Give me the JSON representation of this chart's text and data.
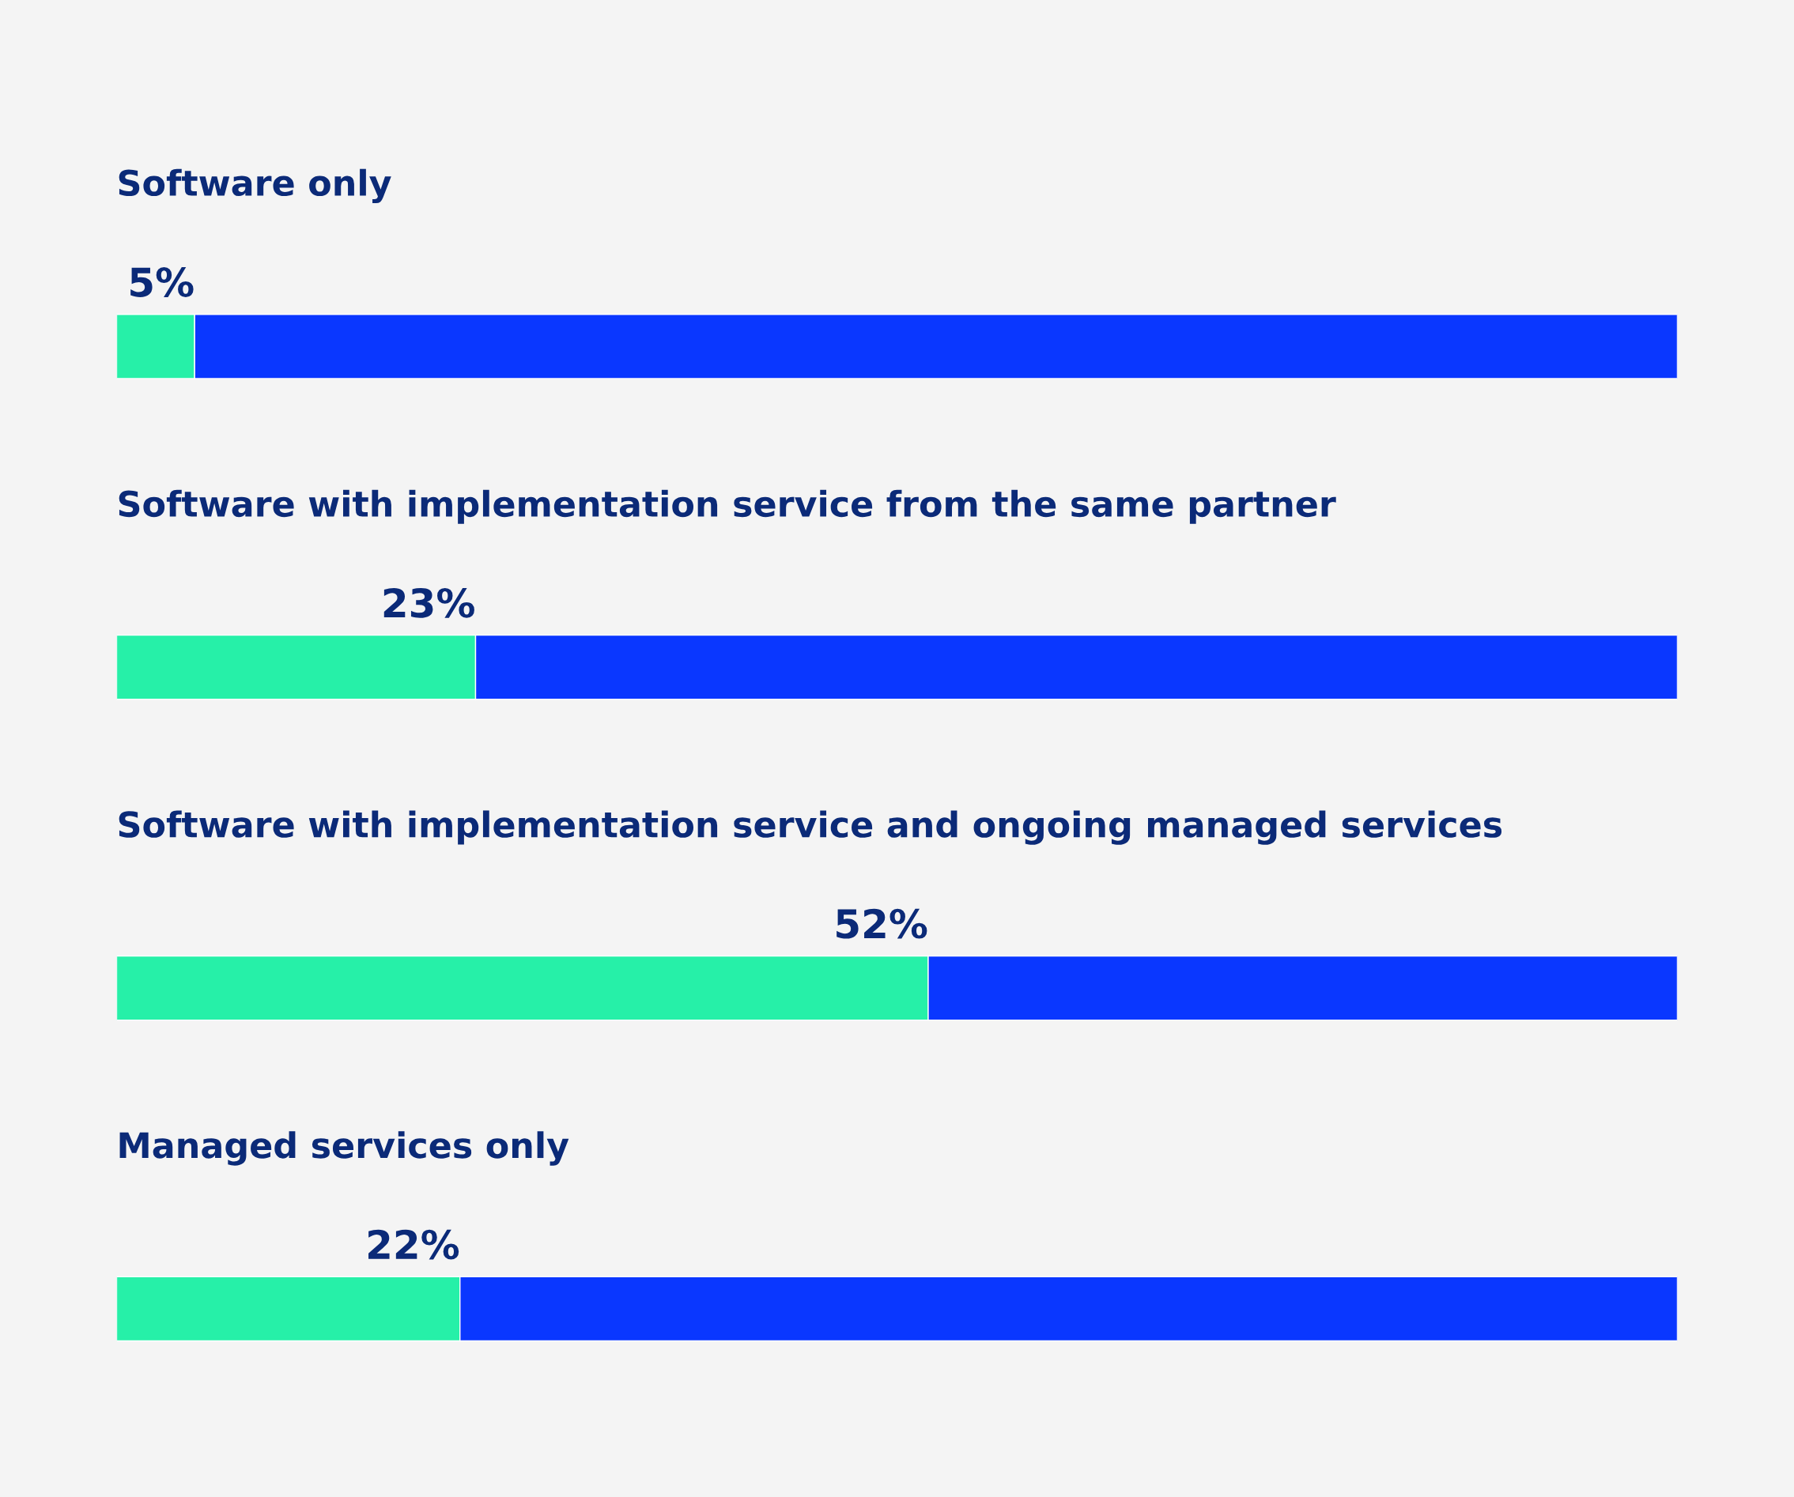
{
  "chart_data": {
    "type": "bar",
    "orientation": "horizontal",
    "stacked": true,
    "categories": [
      "Software only",
      "Software with implementation service from the same partner",
      "Software with implementation service and ongoing managed services",
      "Managed services only"
    ],
    "series": [
      {
        "color": "#26f0a8",
        "values": [
          5,
          23,
          52,
          22
        ],
        "value_labels": [
          "5%",
          "23%",
          "52%",
          "22%"
        ]
      },
      {
        "color": "#0a37ff",
        "values": [
          95,
          77,
          48,
          78
        ]
      }
    ],
    "xlim": [
      0,
      100
    ]
  }
}
